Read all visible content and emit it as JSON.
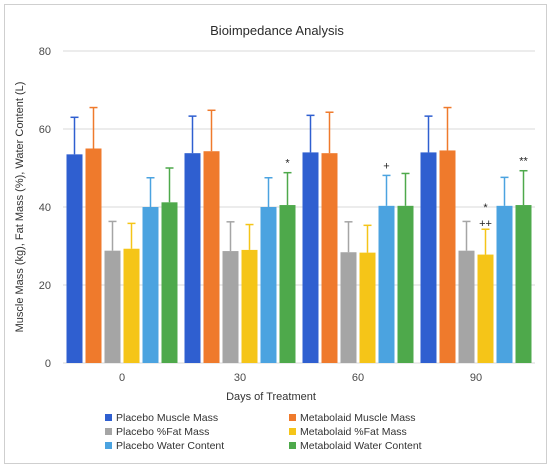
{
  "chart_data": {
    "type": "bar",
    "title": "Bioimpedance Analysis",
    "xlabel": "Days of Treatment",
    "ylabel": "Muscle Mass (kg), Fat Mass (%), Water Content (L)",
    "categories": [
      "0",
      "30",
      "60",
      "90"
    ],
    "ylim": [
      0,
      80
    ],
    "yticks": [
      0,
      20,
      40,
      60,
      80
    ],
    "grid": "horizontal",
    "legend_position": "bottom",
    "series": [
      {
        "name": "Placebo Muscle Mass",
        "color": "#2f5fd0",
        "values": [
          53.5,
          53.8,
          54.0,
          54.0
        ],
        "errors": [
          9.5,
          9.5,
          9.5,
          9.3
        ]
      },
      {
        "name": "Metabolaid Muscle Mass",
        "color": "#ef7a2c",
        "values": [
          55.0,
          54.3,
          53.8,
          54.5
        ],
        "errors": [
          10.5,
          10.5,
          10.5,
          11.0
        ]
      },
      {
        "name": "Placebo %Fat Mass",
        "color": "#a5a5a5",
        "values": [
          28.8,
          28.7,
          28.4,
          28.8
        ],
        "errors": [
          7.5,
          7.5,
          7.8,
          7.5
        ]
      },
      {
        "name": "Metabolaid %Fat Mass",
        "color": "#f5c518",
        "values": [
          29.3,
          29.0,
          28.3,
          27.8
        ],
        "errors": [
          6.5,
          6.5,
          7.0,
          6.5
        ]
      },
      {
        "name": "Placebo Water Content",
        "color": "#4ba3e0",
        "values": [
          40.0,
          40.0,
          40.3,
          40.3
        ],
        "errors": [
          7.5,
          7.5,
          7.8,
          7.3
        ]
      },
      {
        "name": "Metabolaid Water Content",
        "color": "#4ea94b",
        "values": [
          41.2,
          40.5,
          40.3,
          40.5
        ],
        "errors": [
          8.8,
          8.3,
          8.3,
          8.8
        ]
      }
    ],
    "annotations": [
      {
        "category": 1,
        "series": 5,
        "text": "*"
      },
      {
        "category": 2,
        "series": 4,
        "text": "+"
      },
      {
        "category": 3,
        "series": 3,
        "text": "*"
      },
      {
        "category": 3,
        "series": 3,
        "text": "++"
      },
      {
        "category": 3,
        "series": 5,
        "text": "**"
      }
    ]
  }
}
